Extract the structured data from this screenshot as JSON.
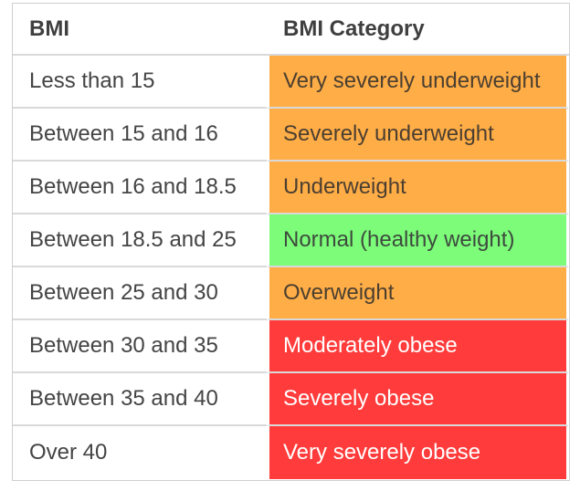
{
  "table": {
    "headers": [
      "BMI",
      "BMI Category"
    ],
    "rows": [
      {
        "bmi": "Less than 15",
        "category": "Very severely underweight",
        "color": "#ffad47"
      },
      {
        "bmi": "Between 15 and 16",
        "category": "Severely underweight",
        "color": "#ffad47"
      },
      {
        "bmi": "Between 16 and 18.5",
        "category": "Underweight",
        "color": "#ffad47"
      },
      {
        "bmi": "Between 18.5 and 25",
        "category": "Normal (healthy weight)",
        "color": "#7dfc7a"
      },
      {
        "bmi": "Between 25 and 30",
        "category": "Overweight",
        "color": "#ffad47"
      },
      {
        "bmi": "Between 30 and 35",
        "category": "Moderately obese",
        "color": "#ff3b3b"
      },
      {
        "bmi": "Between 35 and 40",
        "category": "Severely obese",
        "color": "#ff3b3b"
      },
      {
        "bmi": "Over 40",
        "category": "Very severely obese",
        "color": "#ff3b3b"
      }
    ]
  }
}
